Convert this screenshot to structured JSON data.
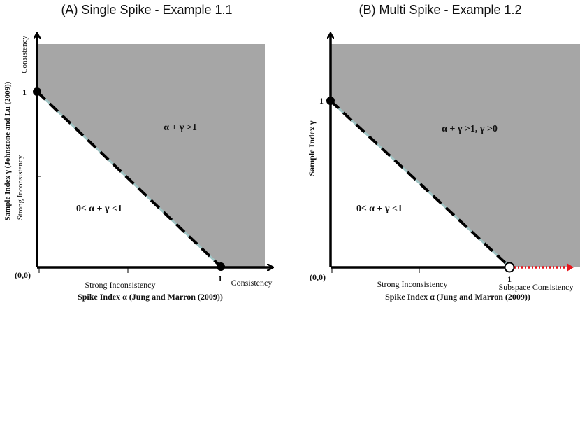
{
  "panel_a": {
    "title": "(A) Single Spike - Example 1.1",
    "origin_label": "(0,0)",
    "y_one": "1",
    "x_one": "1",
    "y_axis_label": "Sample Index  γ (Johnstone and Lu (2009))",
    "y_consistency": "Consistency",
    "y_strong_inconsistency": "Strong  Inconsistency",
    "region_upper": "α + γ >1",
    "region_lower": "0≤ α + γ <1",
    "x_strong_inconsistency": "Strong  Inconsistency",
    "x_consistency": "Consistency",
    "x_axis_label": "Spike Index α (Jung and Marron (2009))"
  },
  "panel_b": {
    "title": "(B) Multi Spike - Example 1.2",
    "origin_label": "(0,0)",
    "y_one": "1",
    "x_one": "1",
    "y_axis_label": "Sample Index γ",
    "region_upper": "α + γ >1, γ >0",
    "region_lower": "0≤ α + γ <1",
    "x_strong_inconsistency": "Strong  Inconsistency",
    "x_subspace_consistency": "Subspace Consistency",
    "x_axis_label": "Spike Index α (Jung and Marron (2009))"
  },
  "colors": {
    "shade": "#a6a6a6",
    "boundary_dash": "#000000",
    "boundary_light": "#9fc3c3",
    "arrow_red": "#e8141b"
  }
}
